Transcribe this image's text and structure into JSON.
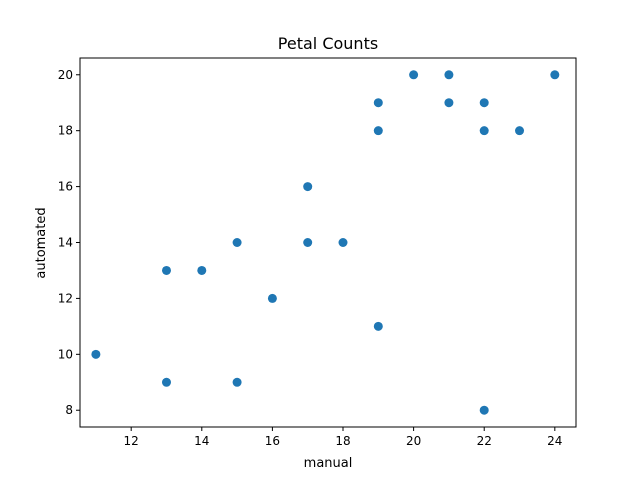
{
  "chart_data": {
    "type": "scatter",
    "title": "Petal Counts",
    "xlabel": "manual",
    "ylabel": "automated",
    "xlim": [
      10.55,
      24.6
    ],
    "ylim": [
      7.4,
      20.6
    ],
    "xticks": [
      12,
      14,
      16,
      18,
      20,
      22,
      24
    ],
    "yticks": [
      8,
      10,
      12,
      14,
      16,
      18,
      20
    ],
    "grid": false,
    "marker_color": "#1f77b4",
    "points": [
      {
        "x": 11,
        "y": 10
      },
      {
        "x": 13,
        "y": 13
      },
      {
        "x": 13,
        "y": 9
      },
      {
        "x": 14,
        "y": 13
      },
      {
        "x": 15,
        "y": 14
      },
      {
        "x": 15,
        "y": 9
      },
      {
        "x": 16,
        "y": 12
      },
      {
        "x": 17,
        "y": 16
      },
      {
        "x": 17,
        "y": 14
      },
      {
        "x": 18,
        "y": 14
      },
      {
        "x": 19,
        "y": 19
      },
      {
        "x": 19,
        "y": 18
      },
      {
        "x": 19,
        "y": 11
      },
      {
        "x": 20,
        "y": 20
      },
      {
        "x": 21,
        "y": 20
      },
      {
        "x": 21,
        "y": 19
      },
      {
        "x": 22,
        "y": 19
      },
      {
        "x": 22,
        "y": 18
      },
      {
        "x": 22,
        "y": 8
      },
      {
        "x": 23,
        "y": 18
      },
      {
        "x": 24,
        "y": 20
      }
    ]
  }
}
